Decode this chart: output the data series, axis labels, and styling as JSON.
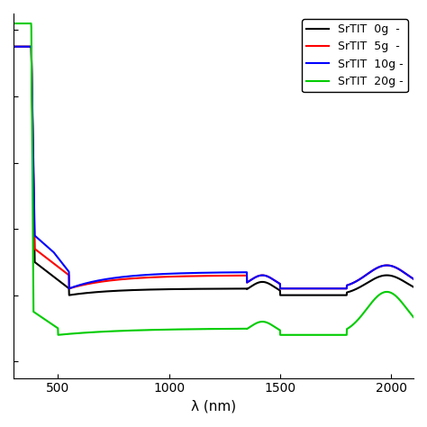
{
  "title": "",
  "xlabel": "λ (nm)",
  "ylabel": "",
  "xlim": [
    300,
    2100
  ],
  "ylim": [
    -0.05,
    1.05
  ],
  "xticks": [
    500,
    1000,
    1500,
    2000
  ],
  "legend_labels": [
    "SrTIT  0g  -",
    "SrTIT  5g  -",
    "SrTIT  10g -",
    "SrTIT  20g -"
  ],
  "colors": [
    "#000000",
    "#ff0000",
    "#0000ff",
    "#00cc00"
  ],
  "line_width": 1.5,
  "background_color": "#ffffff"
}
